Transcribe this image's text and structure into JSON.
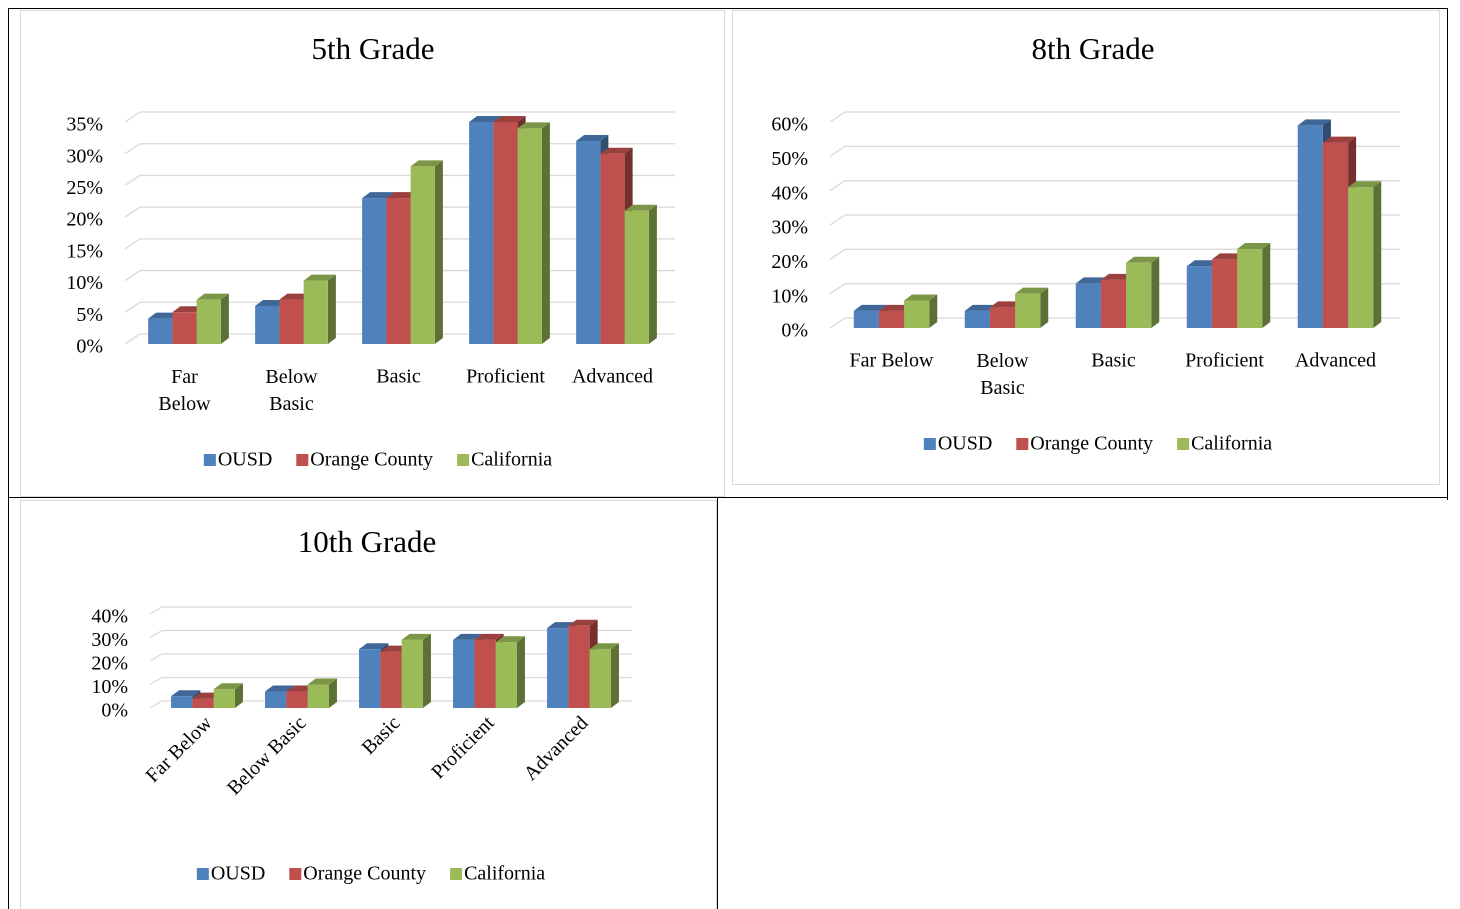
{
  "chart_data": [
    {
      "type": "bar3d",
      "title": "5th Grade",
      "categories": [
        "Far Below",
        "Below Basic",
        "Basic",
        "Proficient",
        "Advanced"
      ],
      "series": [
        {
          "name": "OUSD",
          "color": "#4f81bd",
          "values": [
            4,
            6,
            23,
            35,
            32
          ]
        },
        {
          "name": "Orange County",
          "color": "#c0504d",
          "values": [
            5,
            7,
            23,
            35,
            30
          ]
        },
        {
          "name": "California",
          "color": "#9bbb59",
          "values": [
            7,
            10,
            28,
            34,
            21
          ]
        }
      ],
      "ylim": [
        0,
        35
      ],
      "yticks": [
        {
          "value": 0,
          "label": "0%"
        },
        {
          "value": 5,
          "label": "5%"
        },
        {
          "value": 10,
          "label": "10%"
        },
        {
          "value": 15,
          "label": "15%"
        },
        {
          "value": 20,
          "label": "20%"
        },
        {
          "value": 25,
          "label": "25%"
        },
        {
          "value": 30,
          "label": "30%"
        },
        {
          "value": 35,
          "label": "35%"
        }
      ],
      "grid": true,
      "legend": "bottom"
    },
    {
      "type": "bar3d",
      "title": "8th Grade",
      "categories": [
        "Far Below",
        "Below Basic",
        "Basic",
        "Proficient",
        "Advanced"
      ],
      "series": [
        {
          "name": "OUSD",
          "color": "#4f81bd",
          "values": [
            5,
            5,
            13,
            18,
            59
          ]
        },
        {
          "name": "Orange County",
          "color": "#c0504d",
          "values": [
            5,
            6,
            14,
            20,
            54
          ]
        },
        {
          "name": "California",
          "color": "#9bbb59",
          "values": [
            8,
            10,
            19,
            23,
            41
          ]
        }
      ],
      "ylim": [
        0,
        60
      ],
      "yticks": [
        {
          "value": 0,
          "label": "0%"
        },
        {
          "value": 10,
          "label": "10%"
        },
        {
          "value": 20,
          "label": "20%"
        },
        {
          "value": 30,
          "label": "30%"
        },
        {
          "value": 40,
          "label": "40%"
        },
        {
          "value": 50,
          "label": "50%"
        },
        {
          "value": 60,
          "label": "60%"
        }
      ],
      "grid": true,
      "legend": "bottom"
    },
    {
      "type": "bar3d",
      "title": "10th Grade",
      "categories": [
        "Far Below",
        "Below Basic",
        "Basic",
        "Proficient",
        "Advanced"
      ],
      "series": [
        {
          "name": "OUSD",
          "color": "#4f81bd",
          "values": [
            5,
            7,
            25,
            29,
            34
          ]
        },
        {
          "name": "Orange County",
          "color": "#c0504d",
          "values": [
            4,
            7,
            24,
            29,
            35
          ]
        },
        {
          "name": "California",
          "color": "#9bbb59",
          "values": [
            8,
            10,
            29,
            28,
            25
          ]
        }
      ],
      "ylim": [
        0,
        40
      ],
      "yticks": [
        {
          "value": 0,
          "label": "0%"
        },
        {
          "value": 10,
          "label": "10%"
        },
        {
          "value": 20,
          "label": "20%"
        },
        {
          "value": 30,
          "label": "30%"
        },
        {
          "value": 40,
          "label": "40%"
        }
      ],
      "grid": true,
      "legend": "bottom"
    }
  ]
}
